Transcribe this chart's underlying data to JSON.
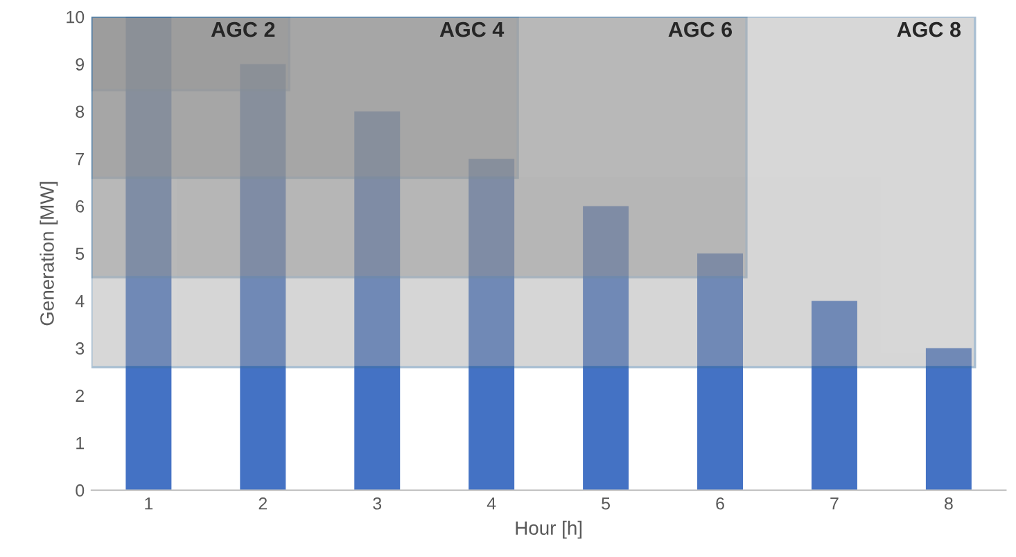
{
  "chart_data": {
    "type": "bar",
    "xlabel": "Hour [h]",
    "ylabel": "Generation [MW]",
    "categories": [
      "1",
      "2",
      "3",
      "4",
      "5",
      "6",
      "7",
      "8"
    ],
    "values": [
      10,
      9,
      8,
      7,
      6,
      5,
      4,
      3
    ],
    "color": "#4472c4",
    "ylim": [
      0,
      10
    ],
    "yticks": [
      0,
      1,
      2,
      3,
      4,
      5,
      6,
      7,
      8,
      9,
      10
    ],
    "grid": false,
    "bands": [
      {
        "axis": "y",
        "from": 8.45,
        "to": 10,
        "color": "#808080"
      },
      {
        "axis": "y",
        "from": 6.6,
        "to": 10,
        "color": "#808080"
      },
      {
        "axis": "y",
        "from": 4.5,
        "to": 10,
        "color": "#808080"
      },
      {
        "axis": "y",
        "from": 2.6,
        "to": 10,
        "color": "#a6a6a6"
      }
    ],
    "annotations": [
      {
        "text": "AGC 2",
        "x": "2",
        "y": 10
      },
      {
        "text": "AGC 4",
        "x": "4",
        "y": 10
      },
      {
        "text": "AGC 6",
        "x": "6",
        "y": 10
      },
      {
        "text": "AGC 8",
        "x": "8",
        "y": 10
      }
    ]
  }
}
